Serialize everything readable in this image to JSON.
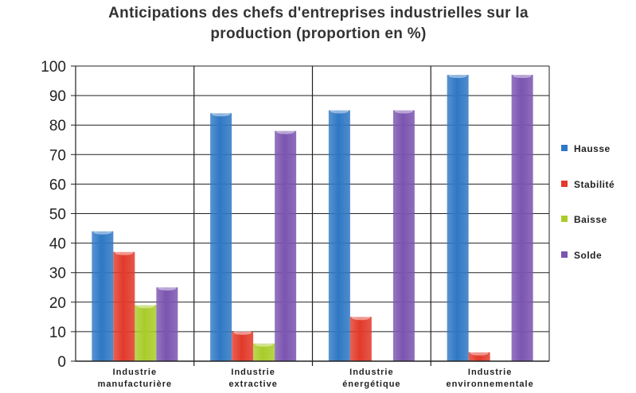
{
  "chart_data": {
    "type": "bar",
    "title": [
      "Anticipations des chefs d'entreprises industrielles sur la",
      "production  (proportion en %)"
    ],
    "categories": [
      [
        "Industrie",
        "manufacturière"
      ],
      [
        "Industrie",
        "extractive"
      ],
      [
        "Industrie",
        "énergétique"
      ],
      [
        "Industrie",
        "environnementale"
      ]
    ],
    "series": [
      {
        "name": "Hausse",
        "color": "#2f78c4",
        "values": [
          44,
          84,
          85,
          97
        ]
      },
      {
        "name": "Stabilité",
        "color": "#e23a2a",
        "values": [
          37,
          10,
          15,
          3
        ]
      },
      {
        "name": "Baisse",
        "color": "#a9cc2a",
        "values": [
          19,
          6,
          0,
          0
        ]
      },
      {
        "name": "Solde",
        "color": "#7b55b0",
        "values": [
          25,
          78,
          85,
          97
        ]
      }
    ],
    "ylim": [
      0,
      100
    ],
    "yticks": [
      0,
      10,
      20,
      30,
      40,
      50,
      60,
      70,
      80,
      90,
      100
    ],
    "grid": true,
    "legend": "right"
  }
}
